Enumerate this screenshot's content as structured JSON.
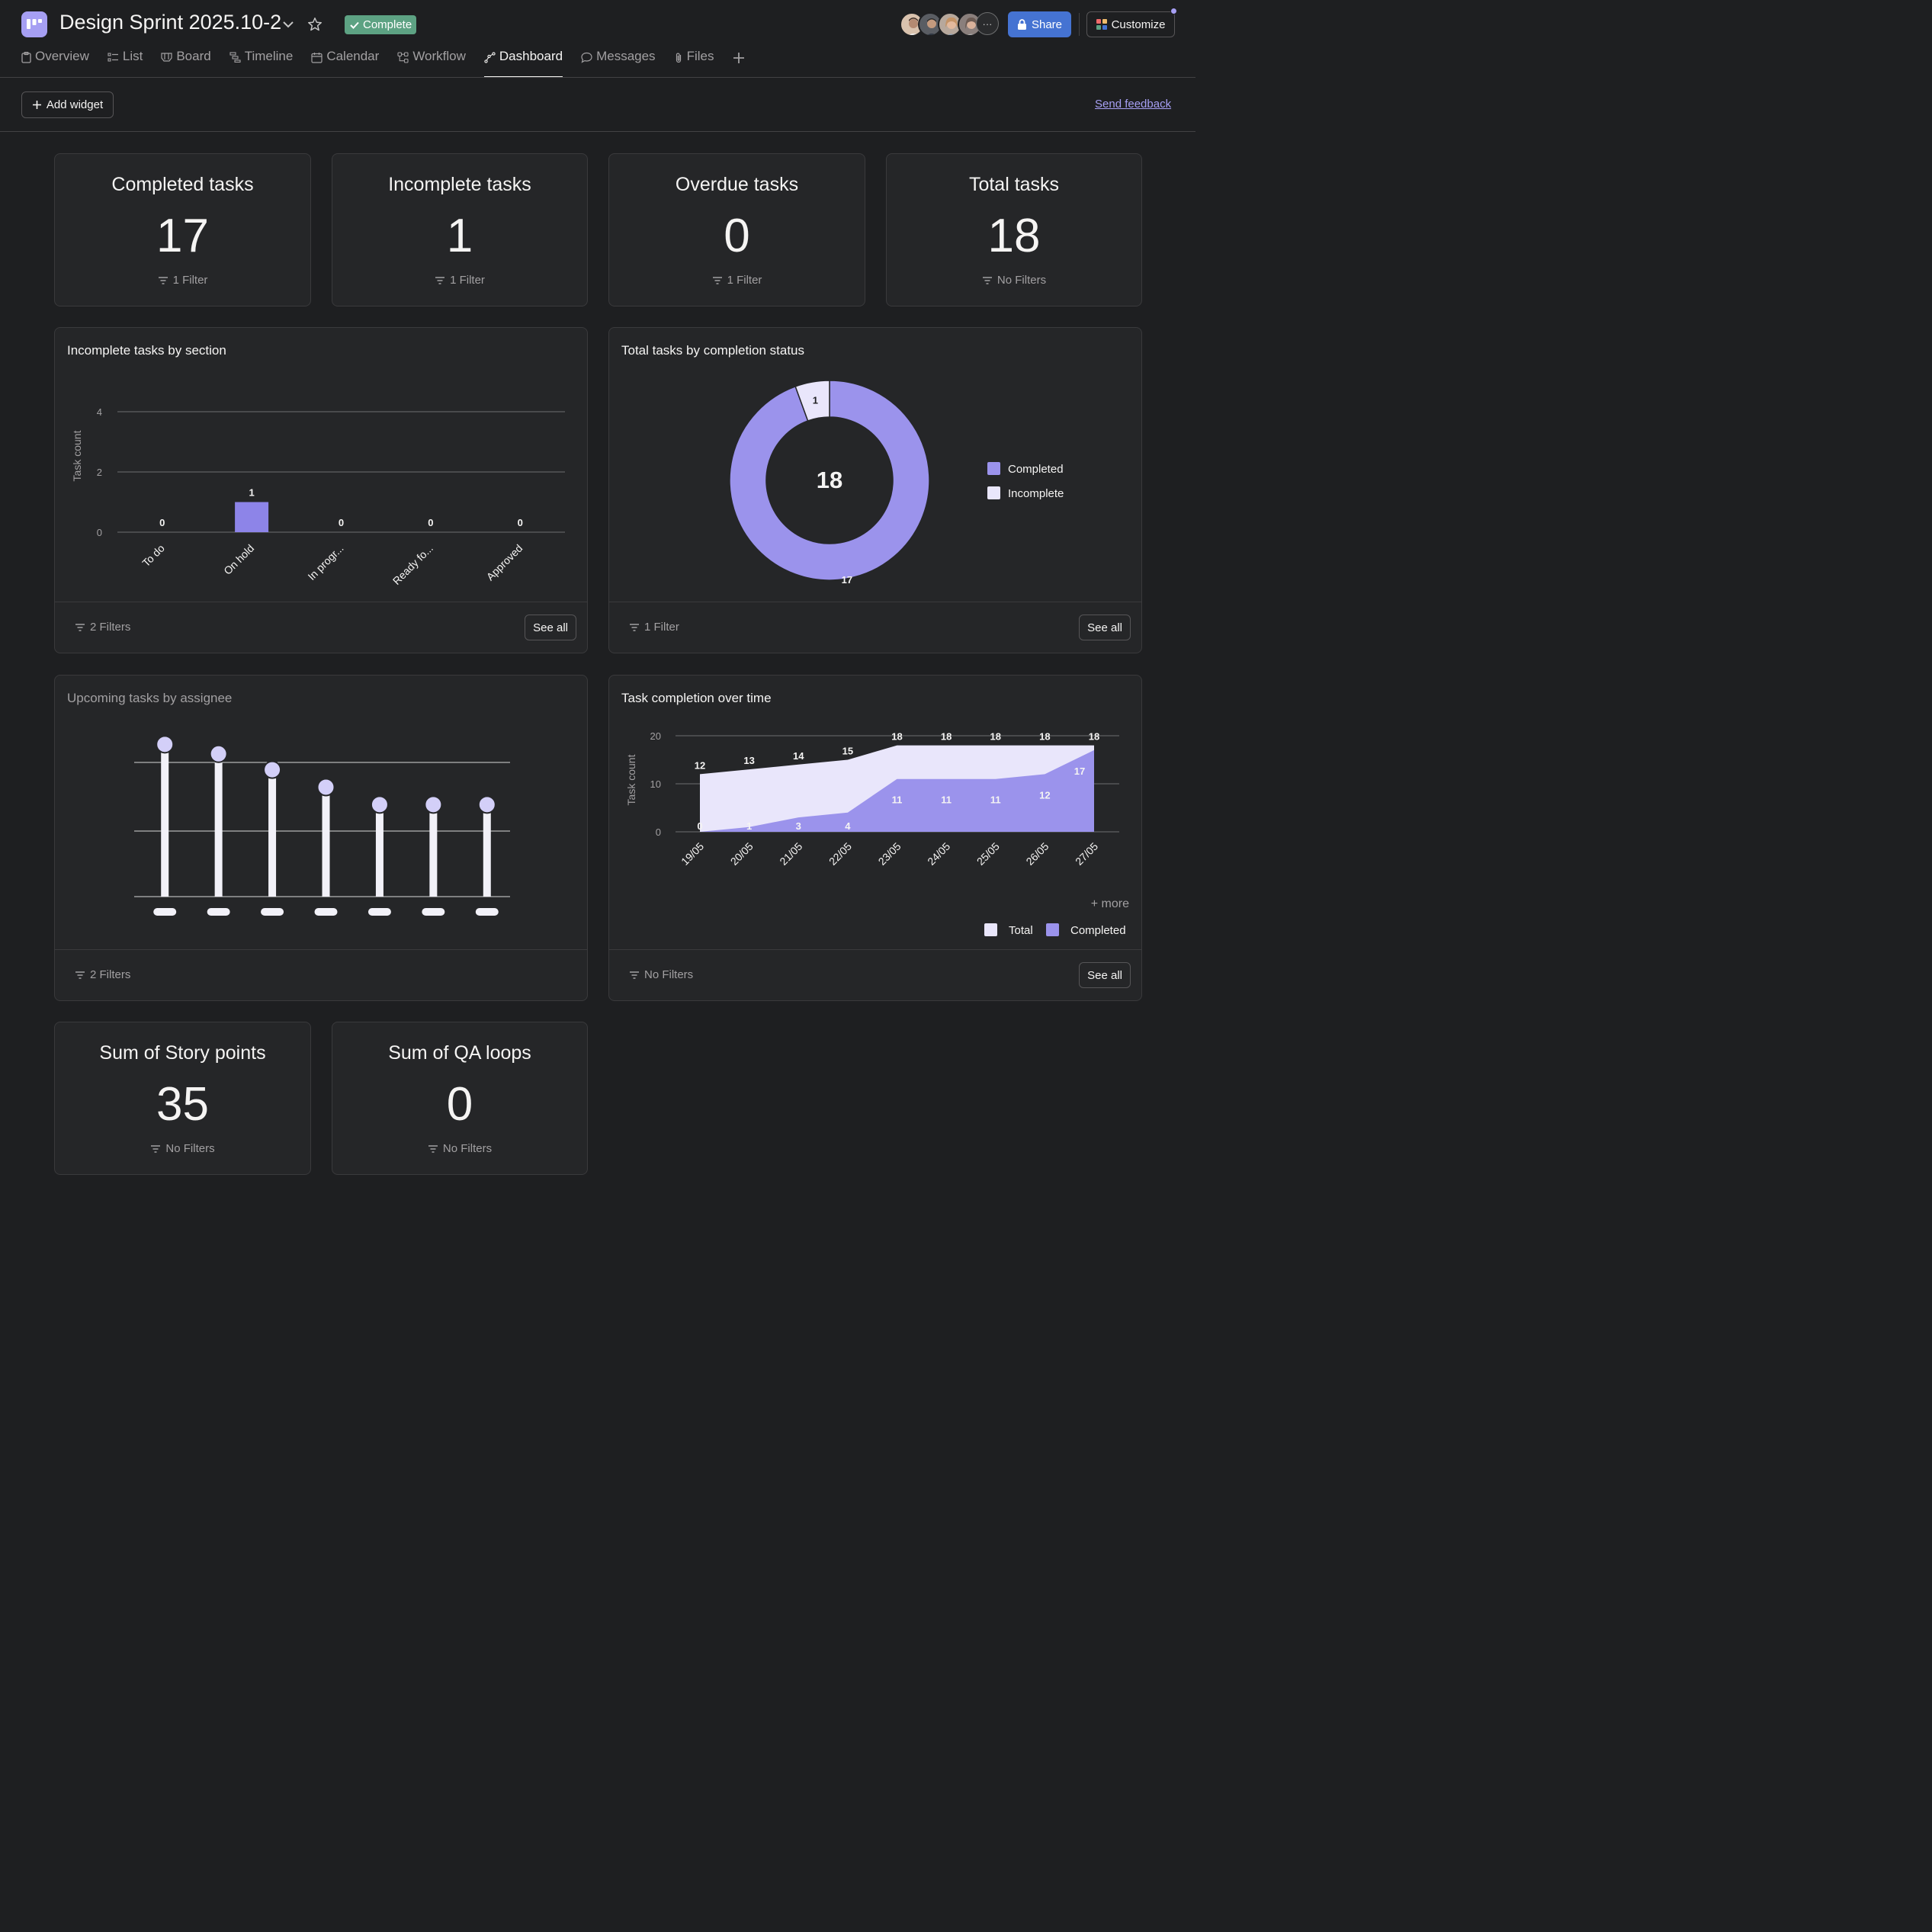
{
  "header": {
    "title": "Design Sprint 2025.10-2",
    "status": "Complete",
    "share_label": "Share",
    "customize_label": "Customize",
    "more_members": "···",
    "colors": {
      "accent": "#a69ff3",
      "share": "#4573d2",
      "status": "#5da283"
    }
  },
  "tabs": [
    {
      "label": "Overview",
      "icon": "overview-icon"
    },
    {
      "label": "List",
      "icon": "list-icon"
    },
    {
      "label": "Board",
      "icon": "board-icon"
    },
    {
      "label": "Timeline",
      "icon": "timeline-icon"
    },
    {
      "label": "Calendar",
      "icon": "calendar-icon"
    },
    {
      "label": "Workflow",
      "icon": "workflow-icon"
    },
    {
      "label": "Dashboard",
      "icon": "dashboard-icon",
      "active": true
    },
    {
      "label": "Messages",
      "icon": "messages-icon"
    },
    {
      "label": "Files",
      "icon": "files-icon"
    }
  ],
  "toolbar": {
    "add_widget_label": "Add widget",
    "feedback_label": "Send feedback"
  },
  "stats": [
    {
      "title": "Completed tasks",
      "value": "17",
      "filter": "1 Filter"
    },
    {
      "title": "Incomplete tasks",
      "value": "1",
      "filter": "1 Filter"
    },
    {
      "title": "Overdue tasks",
      "value": "0",
      "filter": "1 Filter"
    },
    {
      "title": "Total tasks",
      "value": "18",
      "filter": "No Filters"
    }
  ],
  "sums": [
    {
      "title": "Sum of Story points",
      "value": "35",
      "filter": "No Filters"
    },
    {
      "title": "Sum of QA loops",
      "value": "0",
      "filter": "No Filters"
    }
  ],
  "widgets": {
    "incomplete_by_section": {
      "title": "Incomplete tasks by section",
      "filter": "2 Filters",
      "see_all": "See all"
    },
    "completion_status": {
      "title": "Total tasks by completion status",
      "filter": "1 Filter",
      "see_all": "See all"
    },
    "upcoming_by_assignee": {
      "title": "Upcoming tasks by assignee",
      "filter": "2 Filters"
    },
    "completion_over_time": {
      "title": "Task completion over time",
      "filter": "No Filters",
      "see_all": "See all",
      "more_label": "+ more"
    }
  },
  "chart_data": [
    {
      "type": "bar",
      "title": "Incomplete tasks by section",
      "categories": [
        "To do",
        "On hold",
        "In progr...",
        "Ready fo...",
        "Approved"
      ],
      "values": [
        0,
        1,
        0,
        0,
        0
      ],
      "ylabel": "Task count",
      "yticks": [
        0,
        2,
        4
      ],
      "ylim": [
        0,
        4
      ],
      "grid": true,
      "color": "#8d84e8"
    },
    {
      "type": "pie",
      "title": "Total tasks by completion status",
      "center_label": "18",
      "slices": [
        {
          "label": "Completed",
          "value": 17,
          "color": "#9b93ec"
        },
        {
          "label": "Incomplete",
          "value": 1,
          "color": "#e9e6fb"
        }
      ],
      "legend": "right"
    },
    {
      "type": "bar",
      "title": "Upcoming tasks by assignee",
      "loading_placeholder": true,
      "values_fraction": [
        0.96,
        0.9,
        0.8,
        0.69,
        0.58,
        0.58,
        0.58
      ],
      "grid": true
    },
    {
      "type": "area",
      "title": "Task completion over time",
      "x": [
        "19/05",
        "20/05",
        "21/05",
        "22/05",
        "23/05",
        "24/05",
        "25/05",
        "26/05",
        "27/05"
      ],
      "series": [
        {
          "name": "Total",
          "values": [
            12,
            13,
            14,
            15,
            18,
            18,
            18,
            18,
            18
          ],
          "color": "#e9e6fb"
        },
        {
          "name": "Completed",
          "values": [
            0,
            1,
            3,
            4,
            11,
            11,
            11,
            12,
            17
          ],
          "color": "#9b93ec"
        }
      ],
      "ylabel": "Task count",
      "yticks": [
        0,
        10,
        20
      ],
      "ylim": [
        0,
        20
      ],
      "grid": true,
      "legend": "bottom-right"
    }
  ]
}
